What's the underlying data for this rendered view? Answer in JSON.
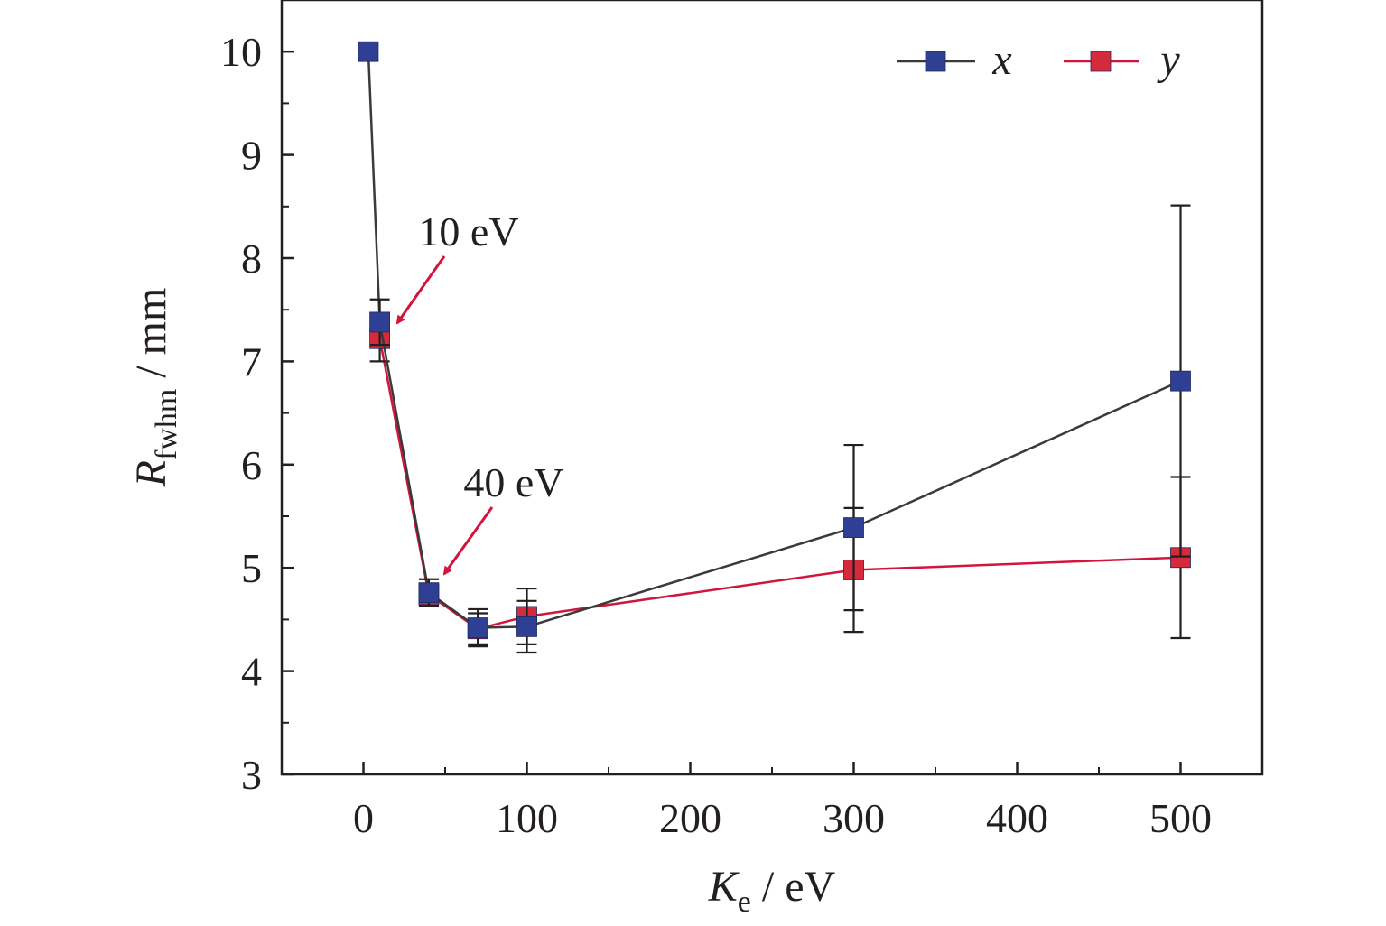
{
  "chart_data": {
    "type": "line",
    "title": "",
    "xlabel": {
      "main": "K",
      "sub": "e",
      "unit": " / eV"
    },
    "ylabel": {
      "main": "R",
      "sub": "fwhm",
      "unit": " / mm"
    },
    "xlim": [
      -50,
      550
    ],
    "ylim": [
      3,
      10.5
    ],
    "xticks": [
      0,
      100,
      200,
      300,
      400,
      500
    ],
    "xtick_labels": [
      "0",
      "100",
      "200",
      "300",
      "400",
      "500"
    ],
    "yticks": [
      3,
      4,
      5,
      6,
      7,
      8,
      9,
      10
    ],
    "ytick_labels": [
      "3",
      "4",
      "5",
      "6",
      "7",
      "8",
      "9",
      "10"
    ],
    "grid": false,
    "legend_position": "top-right",
    "series": [
      {
        "name": "x",
        "color": "#2e3f94",
        "line_color": "#3a3a3a",
        "points": [
          {
            "x": 3,
            "y": 10.0
          },
          {
            "x": 10,
            "y": 7.38,
            "err": 0.22
          },
          {
            "x": 40,
            "y": 4.76,
            "err": 0.13
          },
          {
            "x": 70,
            "y": 4.42,
            "err": 0.18
          },
          {
            "x": 100,
            "y": 4.43,
            "err": 0.25
          },
          {
            "x": 300,
            "y": 5.39,
            "err": 0.8
          },
          {
            "x": 500,
            "y": 6.81,
            "err": 1.7
          }
        ]
      },
      {
        "name": "y",
        "color": "#d42a3c",
        "line_color": "#d0163c",
        "points": [
          {
            "x": 10,
            "y": 7.22,
            "err": 0.22
          },
          {
            "x": 40,
            "y": 4.74,
            "err": 0.1
          },
          {
            "x": 70,
            "y": 4.41,
            "err": 0.15
          },
          {
            "x": 100,
            "y": 4.53,
            "err": 0.27
          },
          {
            "x": 300,
            "y": 4.98,
            "err": 0.6
          },
          {
            "x": 500,
            "y": 5.1,
            "err": 0.78
          }
        ]
      }
    ],
    "annotations": [
      {
        "text": "10 eV",
        "target_x": 10,
        "target_y": 7.33,
        "color": "#d0163c"
      },
      {
        "text": "40 eV",
        "target_x": 40,
        "target_y": 4.85,
        "color": "#d0163c"
      }
    ]
  }
}
